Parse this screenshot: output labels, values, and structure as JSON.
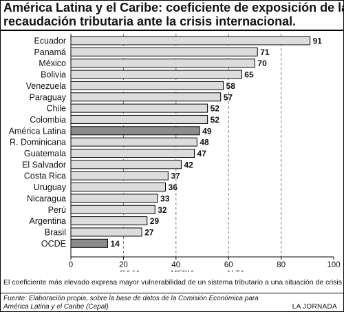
{
  "title_lines": [
    "América Latina y el Caribe: coeficiente de exposición de la",
    "recaudación tributaria ante la crisis internacional."
  ],
  "note": "El coeficiente más elevado expresa mayor vulnerabilidad de un sistema tributario a una situación de crisis",
  "source_lines": [
    "Fuente: Elaboración propia, sobre la base de datos de la Comisión Económica para",
    "América Latina y el Caribe (Cepal)"
  ],
  "credit": "LA JORNADA",
  "colors": {
    "bar": "#dcdcdc",
    "highlight": "#8c8c8c",
    "gridline": "#777777",
    "zone_text": "#888888"
  },
  "chart_data": {
    "type": "bar",
    "orientation": "horizontal",
    "categories": [
      "Ecuador",
      "Panamá",
      "México",
      "Bolivia",
      "Venezuela",
      "Paraguay",
      "Chile",
      "Colombia",
      "América Latina",
      "R. Dominicana",
      "Guatemala",
      "El Salvador",
      "Costa Rica",
      "Uruguay",
      "Nicaragua",
      "Perú",
      "Argentina",
      "Brasil",
      "OCDE"
    ],
    "values": [
      91,
      71,
      70,
      65,
      58,
      57,
      52,
      52,
      49,
      48,
      47,
      42,
      37,
      36,
      33,
      32,
      29,
      27,
      14
    ],
    "highlighted": [
      "América Latina",
      "OCDE"
    ],
    "xlim": [
      0,
      100
    ],
    "xticks": [
      0,
      20,
      40,
      60,
      80,
      100
    ],
    "grid": "dashed vertical at 20, 40, 60, 80",
    "zones": [
      {
        "label": "BAJA",
        "at": 20
      },
      {
        "label": "MEDIA",
        "at": 40
      },
      {
        "label": "ALTA",
        "at": 60
      }
    ]
  }
}
